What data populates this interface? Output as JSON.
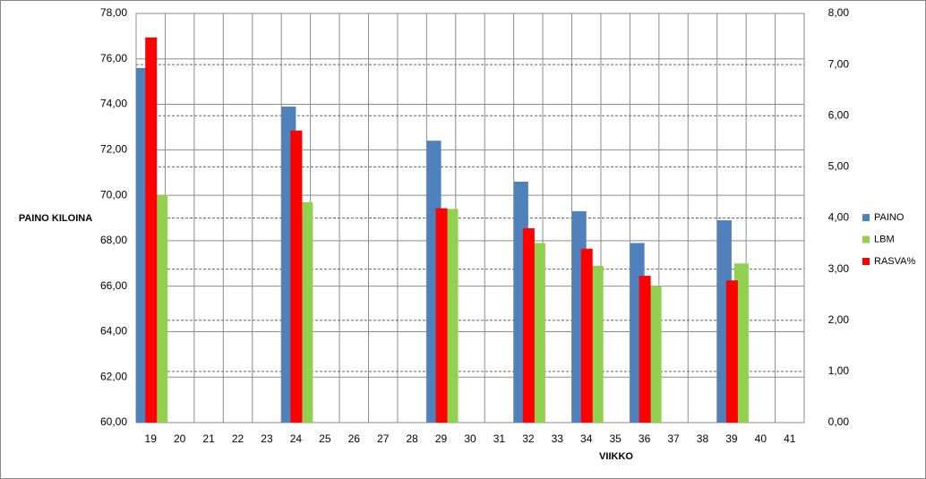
{
  "chart_data": {
    "type": "bar",
    "categories": [
      "19",
      "20",
      "21",
      "22",
      "23",
      "24",
      "25",
      "26",
      "27",
      "28",
      "29",
      "30",
      "31",
      "32",
      "33",
      "34",
      "35",
      "36",
      "37",
      "38",
      "39",
      "40",
      "41"
    ],
    "series": [
      {
        "name": "PAINO",
        "color": "#4f81bd",
        "values": [
          75.6,
          null,
          null,
          null,
          null,
          73.9,
          null,
          null,
          null,
          null,
          72.4,
          null,
          null,
          70.6,
          null,
          69.3,
          null,
          67.9,
          null,
          null,
          68.9,
          null,
          null
        ]
      },
      {
        "name": "LBM",
        "color": "#92d050",
        "values": [
          70.0,
          null,
          null,
          null,
          null,
          69.7,
          null,
          null,
          null,
          null,
          69.4,
          null,
          null,
          67.9,
          null,
          66.9,
          null,
          66.0,
          null,
          null,
          67.0,
          null,
          null
        ]
      },
      {
        "name": "RASVA%",
        "color": "#ff0000",
        "axis": "y2",
        "values": [
          7.53,
          null,
          null,
          null,
          null,
          5.71,
          null,
          null,
          null,
          null,
          4.19,
          null,
          null,
          3.8,
          null,
          3.4,
          null,
          2.87,
          null,
          null,
          2.78,
          null,
          null
        ]
      }
    ],
    "y_label": "PAINO KILOINA",
    "x_label": "VIIKKO",
    "ylim": [
      60,
      78
    ],
    "yticks": [
      {
        "value": 60,
        "label": "60,00"
      },
      {
        "value": 62,
        "label": "62,00"
      },
      {
        "value": 64,
        "label": "64,00"
      },
      {
        "value": 66,
        "label": "66,00"
      },
      {
        "value": 68,
        "label": "68,00"
      },
      {
        "value": 70,
        "label": "70,00"
      },
      {
        "value": 72,
        "label": "72,00"
      },
      {
        "value": 74,
        "label": "74,00"
      },
      {
        "value": 76,
        "label": "76,00"
      },
      {
        "value": 78,
        "label": "78,00"
      }
    ],
    "y2lim": [
      0,
      8
    ],
    "y2ticks": [
      {
        "value": 0,
        "label": "0,00"
      },
      {
        "value": 1,
        "label": "1,00"
      },
      {
        "value": 2,
        "label": "2,00"
      },
      {
        "value": 3,
        "label": "3,00"
      },
      {
        "value": 4,
        "label": "4,00"
      },
      {
        "value": 5,
        "label": "5,00"
      },
      {
        "value": 6,
        "label": "6,00"
      },
      {
        "value": 7,
        "label": "7,00"
      },
      {
        "value": 8,
        "label": "8,00"
      }
    ],
    "grid": true,
    "legend": "right"
  }
}
